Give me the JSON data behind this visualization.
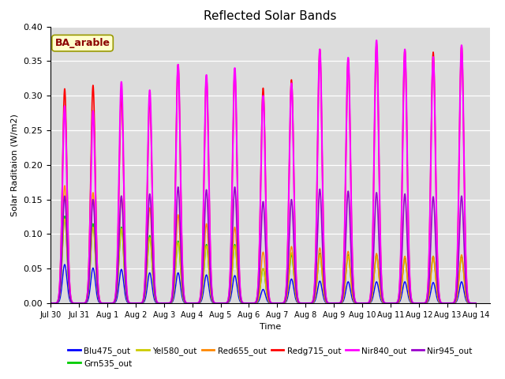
{
  "title": "Reflected Solar Bands",
  "xlabel": "Time",
  "ylabel": "Solar Raditaion (W/m2)",
  "annotation_text": "BA_arable",
  "ylim": [
    0,
    0.4
  ],
  "series_names": [
    "Blu475_out",
    "Grn535_out",
    "Yel580_out",
    "Red655_out",
    "Redg715_out",
    "Nir840_out",
    "Nir945_out"
  ],
  "series_colors": [
    "#0000FF",
    "#00CC00",
    "#CCCC00",
    "#FF8800",
    "#FF0000",
    "#FF00FF",
    "#9900CC"
  ],
  "tick_labels": [
    "Jul 30",
    "Jul 31",
    "Aug 1",
    "Aug 2",
    "Aug 3",
    "Aug 4",
    "Aug 5",
    "Aug 6",
    "Aug 7",
    "Aug 8",
    "Aug 9",
    "Aug 10",
    "Aug 11",
    "Aug 12",
    "Aug 13",
    "Aug 14"
  ],
  "peaks_blu": [
    0.056,
    0.051,
    0.049,
    0.044,
    0.044,
    0.041,
    0.04,
    0.02,
    0.035,
    0.032,
    0.031,
    0.031,
    0.031,
    0.03,
    0.031
  ],
  "peaks_grn": [
    0.126,
    0.115,
    0.11,
    0.098,
    0.09,
    0.085,
    0.085,
    0.05,
    0.07,
    0.072,
    0.07,
    0.07,
    0.065,
    0.068,
    0.068
  ],
  "peaks_yel": [
    0.122,
    0.11,
    0.108,
    0.095,
    0.088,
    0.083,
    0.083,
    0.05,
    0.073,
    0.07,
    0.068,
    0.068,
    0.063,
    0.065,
    0.065
  ],
  "peaks_red": [
    0.17,
    0.16,
    0.155,
    0.138,
    0.128,
    0.115,
    0.11,
    0.074,
    0.082,
    0.08,
    0.075,
    0.072,
    0.068,
    0.068,
    0.07
  ],
  "peaks_redg": [
    0.31,
    0.315,
    0.3,
    0.295,
    0.345,
    0.327,
    0.334,
    0.311,
    0.323,
    0.367,
    0.353,
    0.375,
    0.366,
    0.363,
    0.372
  ],
  "peaks_nir840": [
    0.285,
    0.278,
    0.32,
    0.308,
    0.345,
    0.33,
    0.34,
    0.3,
    0.318,
    0.367,
    0.355,
    0.38,
    0.367,
    0.356,
    0.373
  ],
  "peaks_nir945": [
    0.155,
    0.15,
    0.155,
    0.158,
    0.168,
    0.164,
    0.168,
    0.147,
    0.15,
    0.165,
    0.162,
    0.16,
    0.158,
    0.154,
    0.155
  ],
  "bg_color": "#DCDCDC",
  "fig_bg": "#FFFFFF",
  "linewidths": [
    1.0,
    1.0,
    1.0,
    1.0,
    1.2,
    1.5,
    1.2
  ]
}
